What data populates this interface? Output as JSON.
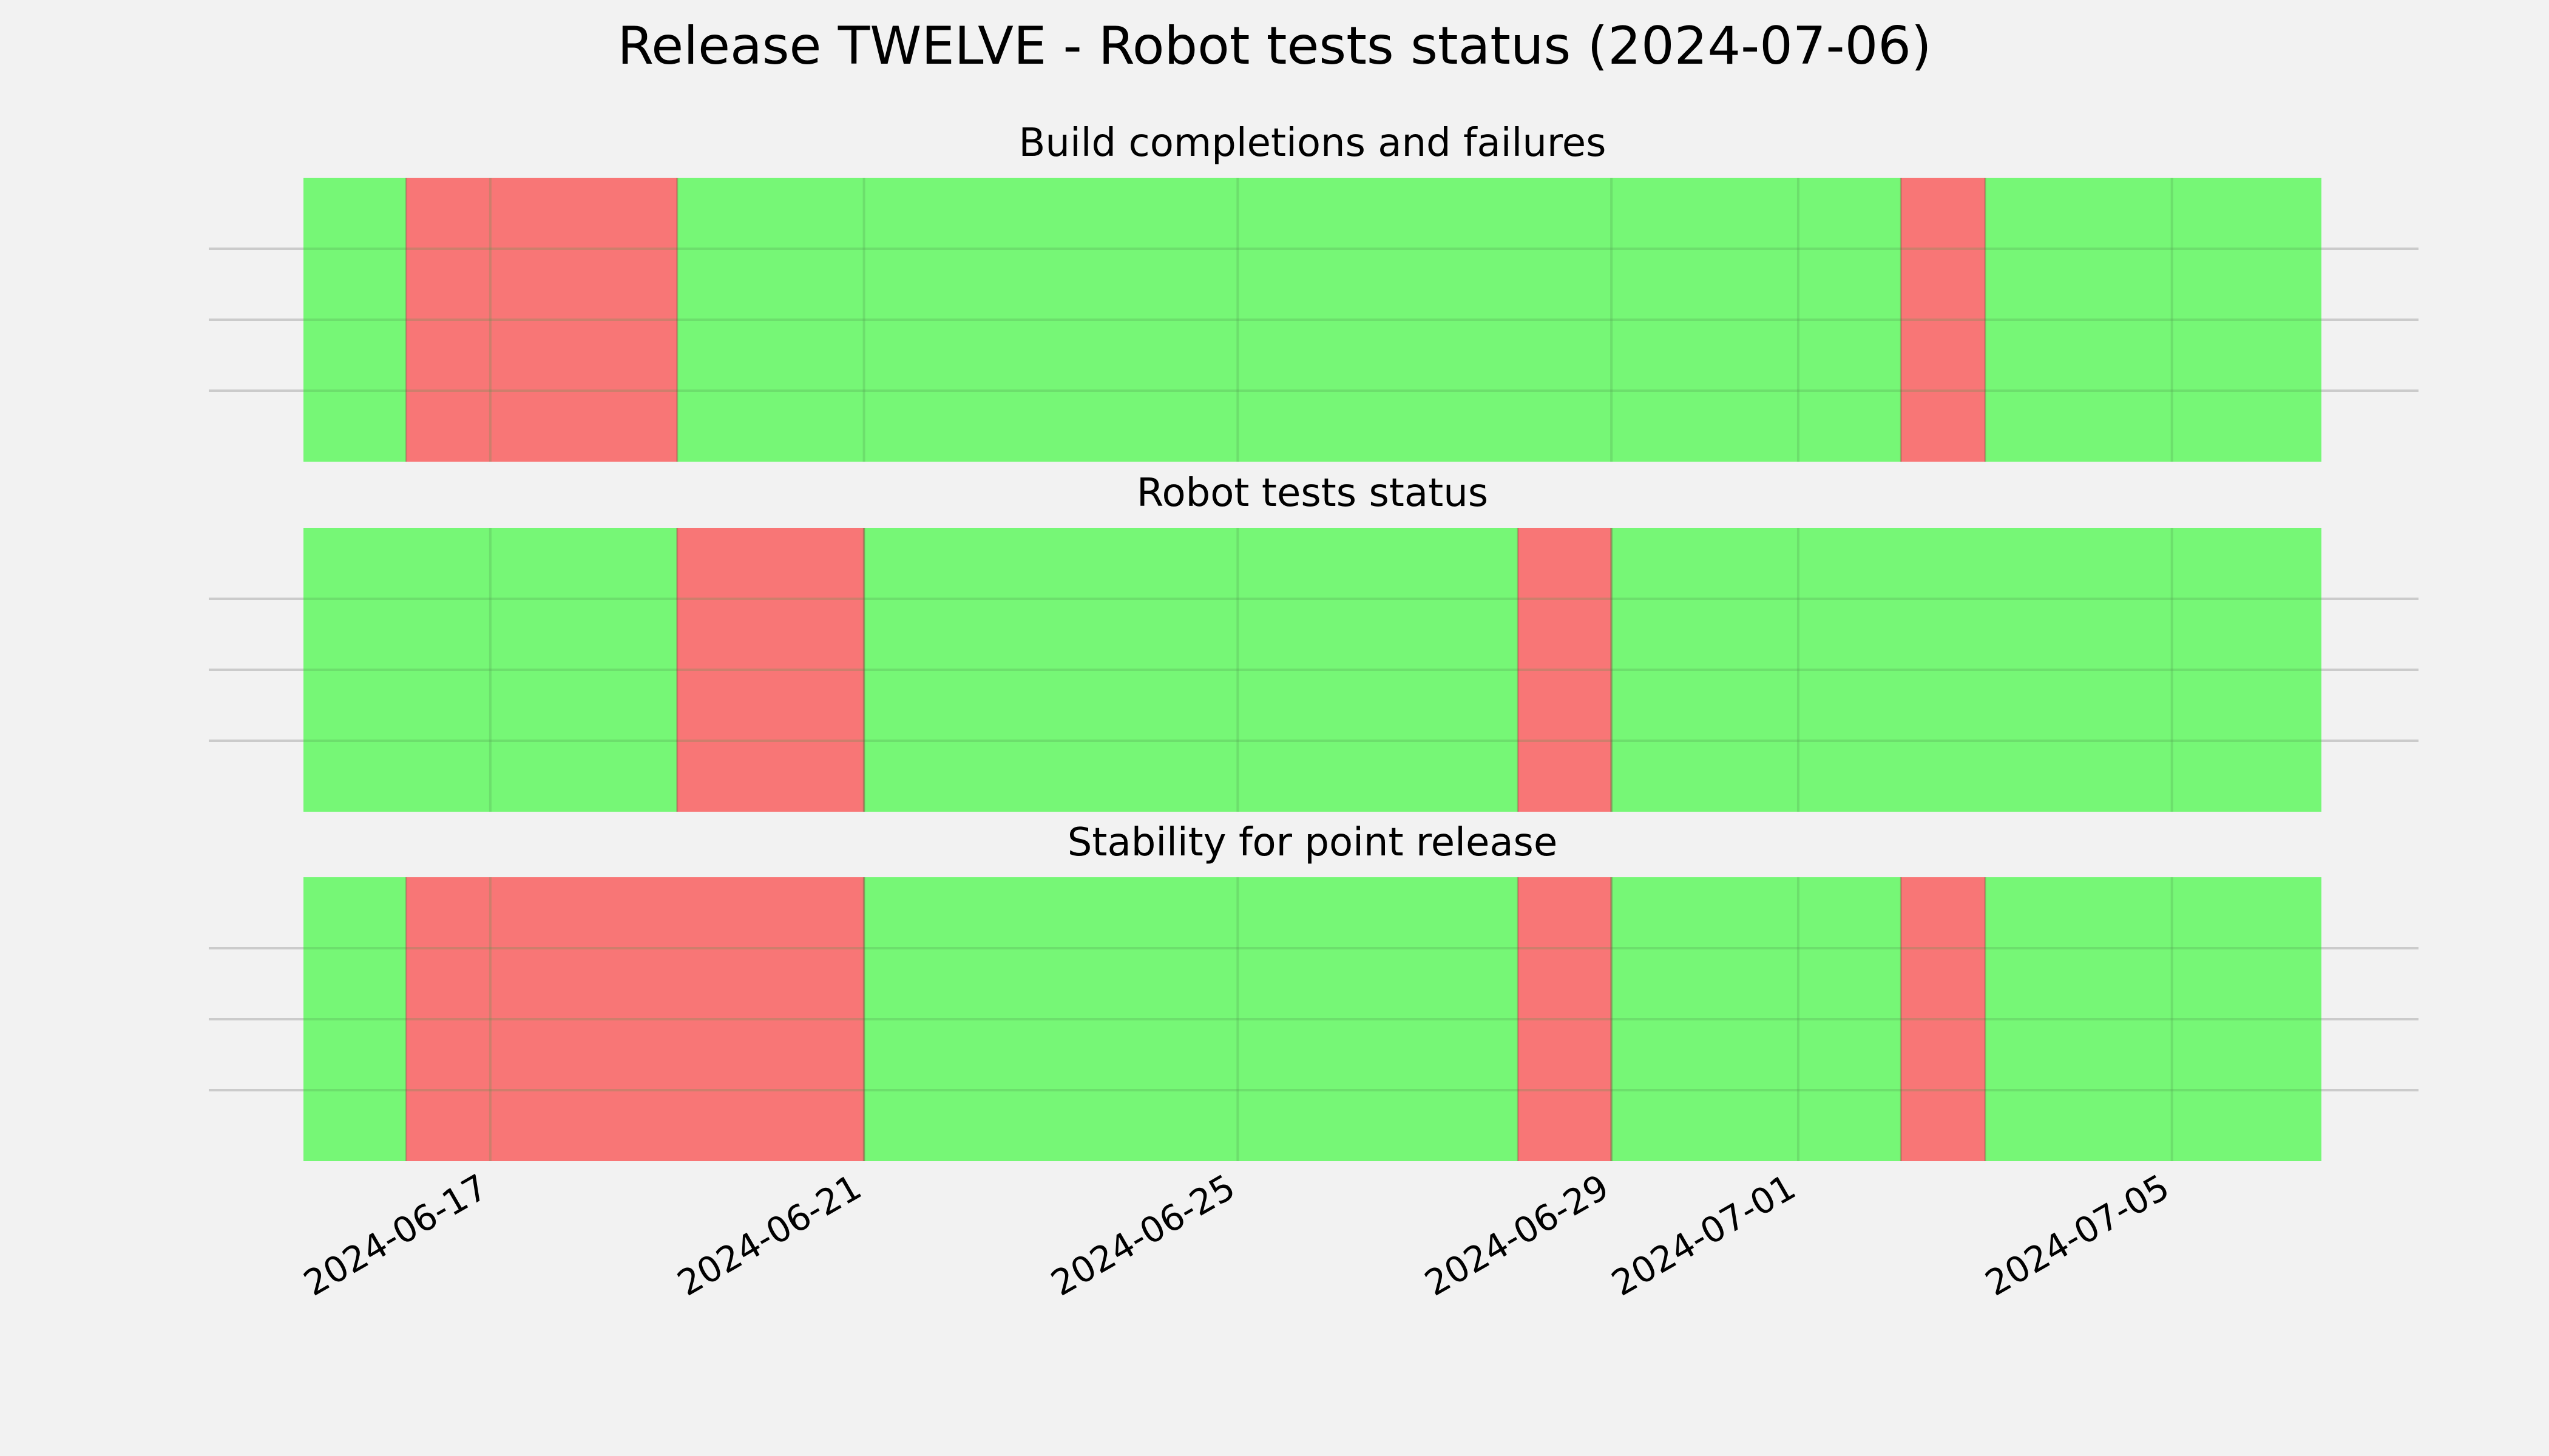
{
  "chart_data": {
    "type": "status-timeline",
    "title": "Release TWELVE - Robot tests status (2024-07-06)",
    "x_range": [
      "2024-06-15",
      "2024-07-06"
    ],
    "x_ticks": [
      "2024-06-17",
      "2024-06-21",
      "2024-06-25",
      "2024-06-29",
      "2024-07-01",
      "2024-07-05"
    ],
    "grid": true,
    "colors": {
      "pass": "#76f776",
      "fail": "#f87676",
      "background": "#f2f2f2",
      "grid": "#cbcbcb"
    },
    "panels": [
      {
        "title": "Build completions and failures",
        "segments": [
          {
            "start": "2024-06-15",
            "end": "2024-06-16.1",
            "status": "pass"
          },
          {
            "start": "2024-06-16.1",
            "end": "2024-06-19",
            "status": "fail"
          },
          {
            "start": "2024-06-19",
            "end": "2024-07-02.1",
            "status": "pass"
          },
          {
            "start": "2024-07-02.1",
            "end": "2024-07-03",
            "status": "fail"
          },
          {
            "start": "2024-07-03",
            "end": "2024-07-06.6",
            "status": "pass"
          }
        ]
      },
      {
        "title": "Robot tests status",
        "segments": [
          {
            "start": "2024-06-15",
            "end": "2024-06-19",
            "status": "pass"
          },
          {
            "start": "2024-06-19",
            "end": "2024-06-21",
            "status": "fail"
          },
          {
            "start": "2024-06-21",
            "end": "2024-06-28",
            "status": "pass"
          },
          {
            "start": "2024-06-28",
            "end": "2024-06-29",
            "status": "fail"
          },
          {
            "start": "2024-06-29",
            "end": "2024-07-06.6",
            "status": "pass"
          }
        ]
      },
      {
        "title": "Stability for point release",
        "segments": [
          {
            "start": "2024-06-15",
            "end": "2024-06-16.1",
            "status": "pass"
          },
          {
            "start": "2024-06-16.1",
            "end": "2024-06-21",
            "status": "fail"
          },
          {
            "start": "2024-06-21",
            "end": "2024-06-28",
            "status": "pass"
          },
          {
            "start": "2024-06-28",
            "end": "2024-06-29",
            "status": "fail"
          },
          {
            "start": "2024-06-29",
            "end": "2024-07-02.1",
            "status": "pass"
          },
          {
            "start": "2024-07-02.1",
            "end": "2024-07-03",
            "status": "fail"
          },
          {
            "start": "2024-07-03",
            "end": "2024-07-06.6",
            "status": "pass"
          }
        ]
      }
    ]
  }
}
